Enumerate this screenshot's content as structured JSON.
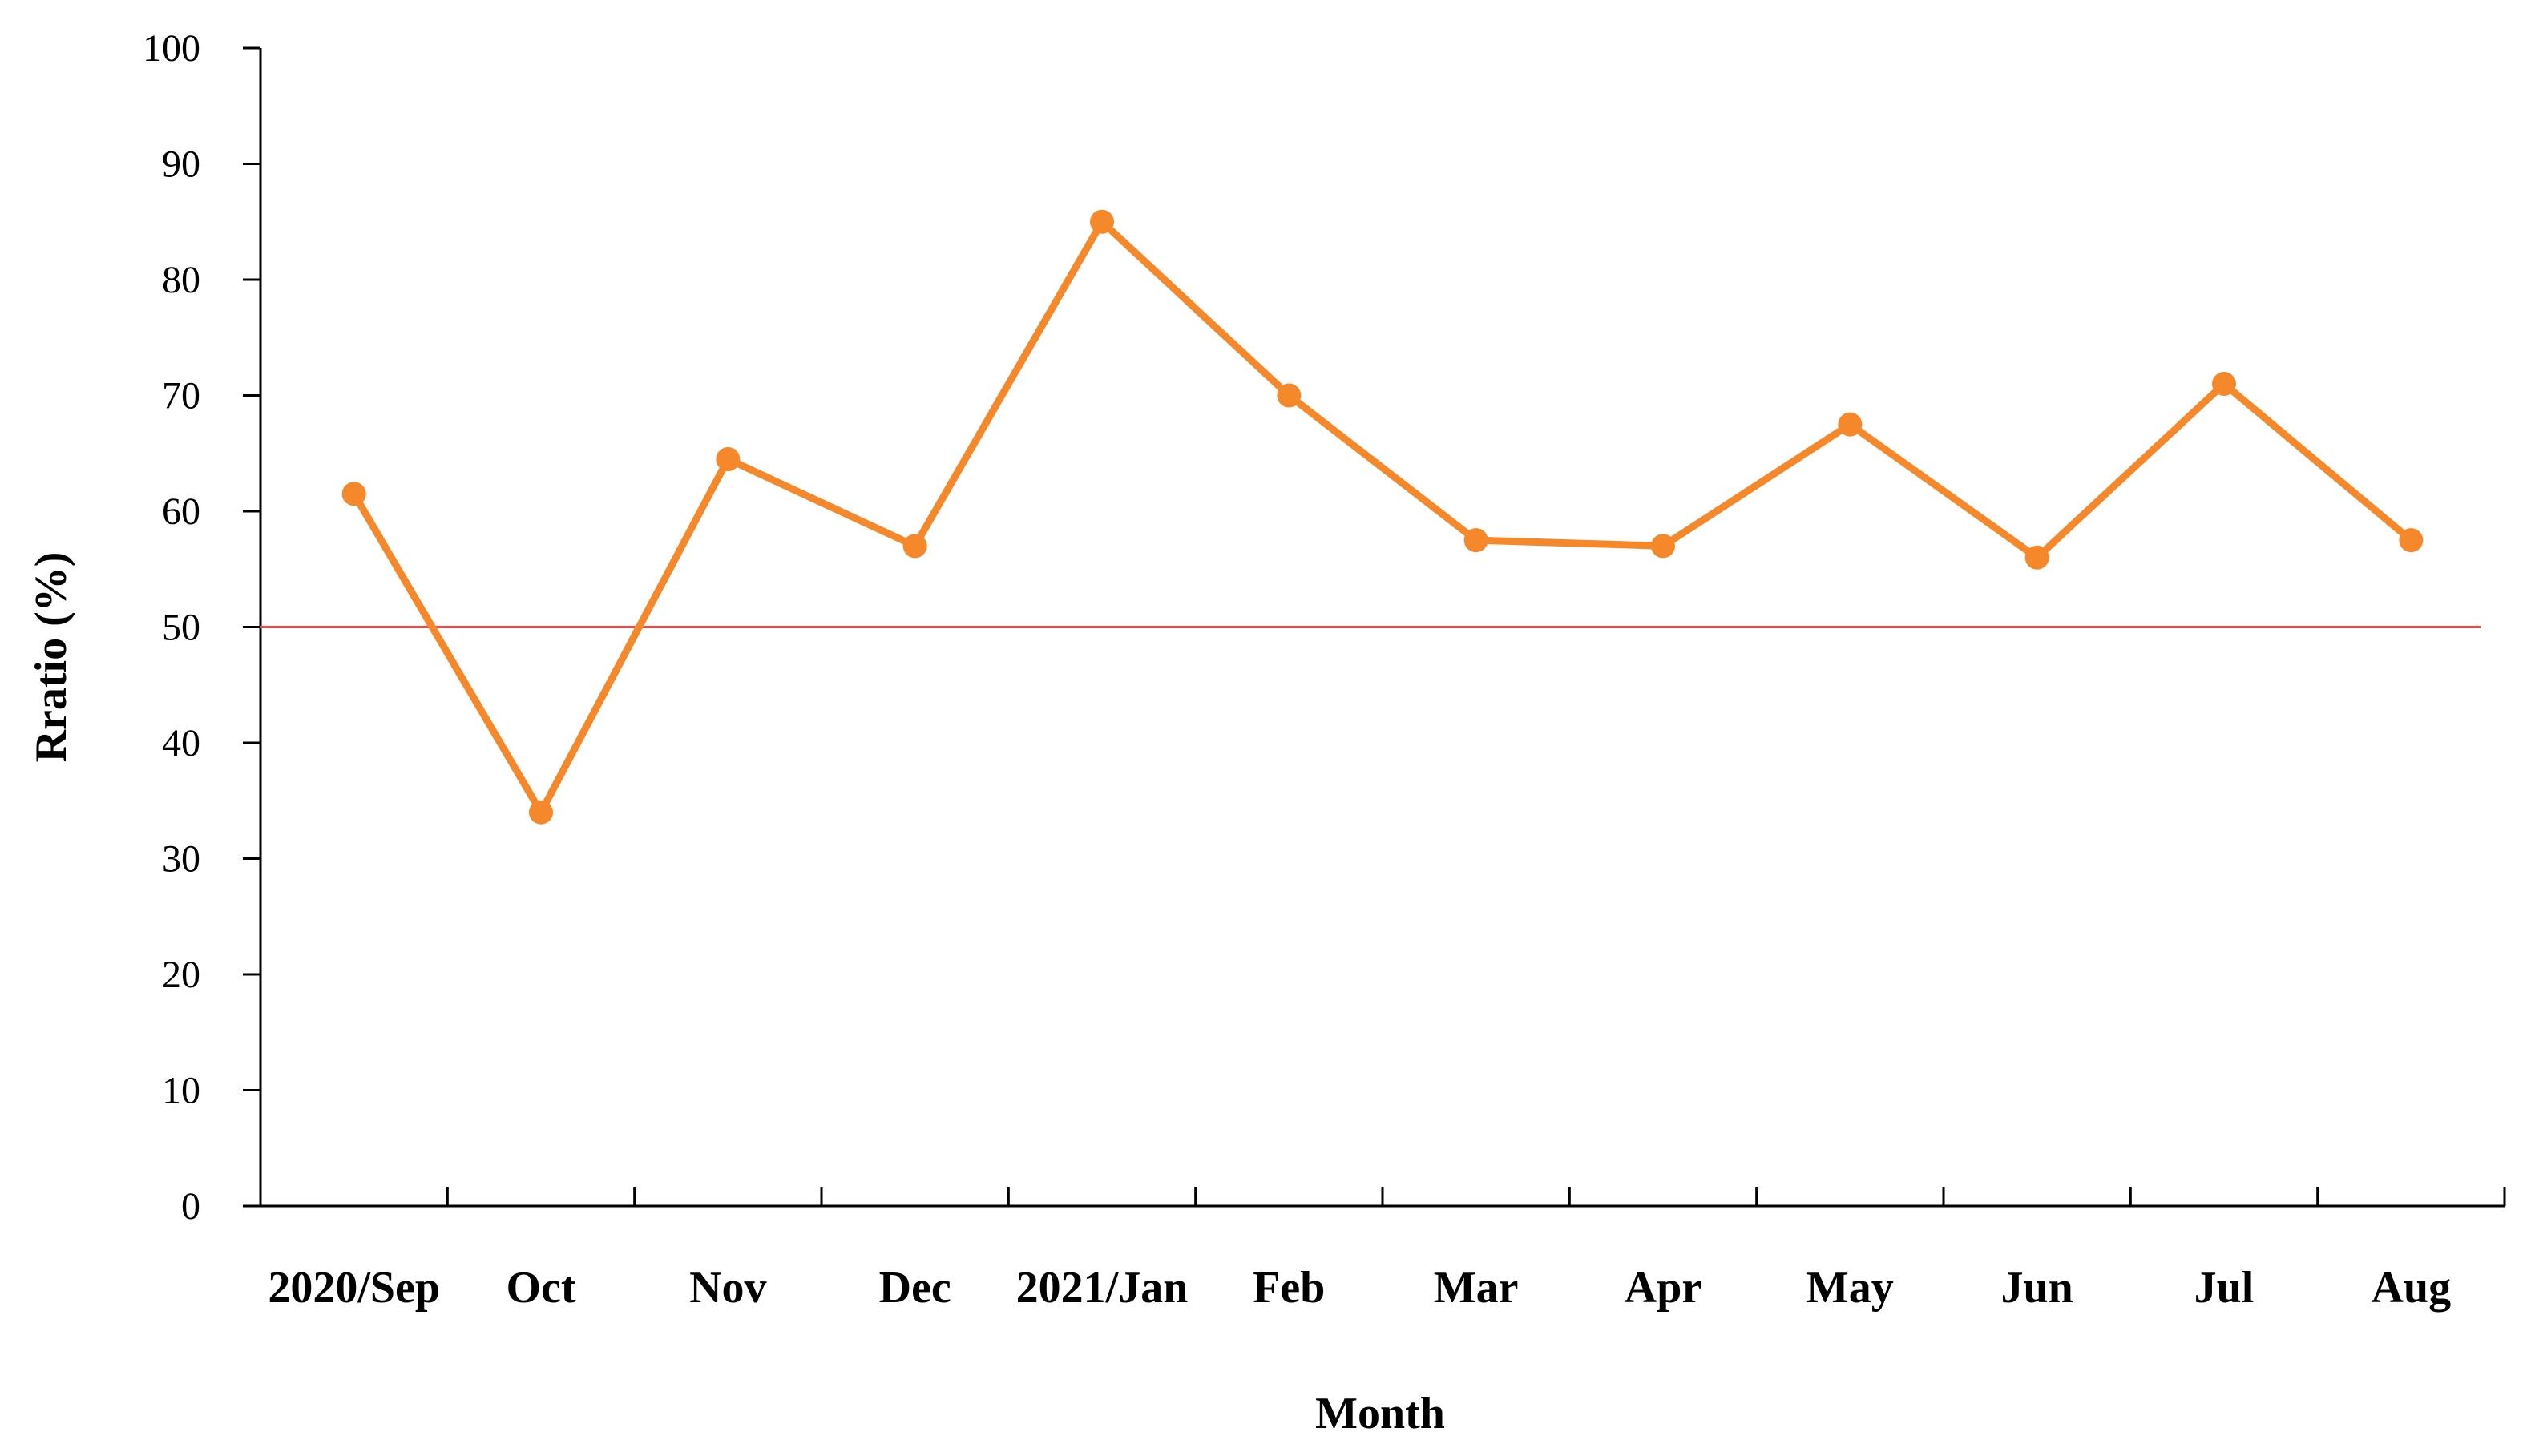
{
  "chart_data": {
    "type": "line",
    "title": "",
    "xlabel": "Month",
    "ylabel": "Rratio (%)",
    "categories": [
      "2020/Sep",
      "Oct",
      "Nov",
      "Dec",
      "2021/Jan",
      "Feb",
      "Mar",
      "Apr",
      "May",
      "Jun",
      "Jul",
      "Aug"
    ],
    "series": [
      {
        "values": [
          61.5,
          34,
          64.5,
          57,
          85,
          70,
          57.5,
          57,
          67.5,
          56,
          71,
          57.5
        ],
        "color": "#f5882a"
      }
    ],
    "reference_line": {
      "value": 50,
      "color": "#f04848"
    },
    "ylim": [
      0,
      100
    ],
    "yticks": [
      0,
      10,
      20,
      30,
      40,
      50,
      60,
      70,
      80,
      90,
      100
    ],
    "grid": false,
    "legend": "none"
  }
}
